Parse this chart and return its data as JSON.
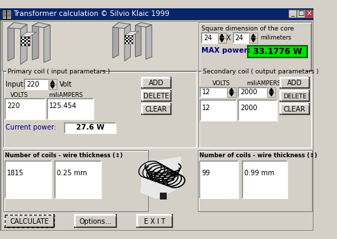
{
  "title": "Transformer calculation © Silvio Klaic 1999",
  "bg_color": "#d4d0c8",
  "white": "#ffffff",
  "black": "#000000",
  "blue_title": "#000080",
  "green_bg": "#00dd00",
  "max_power_label": "MAX power:",
  "max_power_value": "33.1776 W",
  "sq_dim_label": "Square dimension of the core",
  "dim_x": "24",
  "dim_y": "24",
  "dim_unit": "milimeters",
  "primary_label": "Primary coil ( input parametars )",
  "input_label": "Input:",
  "input_val": "220",
  "volt_label": "Volt",
  "volts_col": "VOLTS",
  "miliamp_col": "miliAMPERS",
  "primary_volts": "220",
  "primary_mamps": "125.454",
  "current_power_label": "Current power:",
  "current_power_val": "27.6 W",
  "secondary_label": "Secondary coil ( output parametars )",
  "sec_volts_col": "VOLTS",
  "sec_mamps_col": "miliAMPERS",
  "sec_input_v": "12",
  "sec_input_ma": "2000",
  "sec_list_v": "12",
  "sec_list_ma": "2000",
  "num_coils_label1": "Number of coils - wire thickness (↕)",
  "num_coils_label2": "Number of coils - wire thickness (↕)",
  "coils1": "1815",
  "wire1": "0.25 mm",
  "coils2": "99",
  "wire2": "0.99 mm",
  "btn_add": "ADD",
  "btn_delete": "DELETE",
  "btn_clear": "CLEAR",
  "btn_calculate": "CALCULATE",
  "btn_options": "Options...",
  "btn_exit": "E X I T"
}
